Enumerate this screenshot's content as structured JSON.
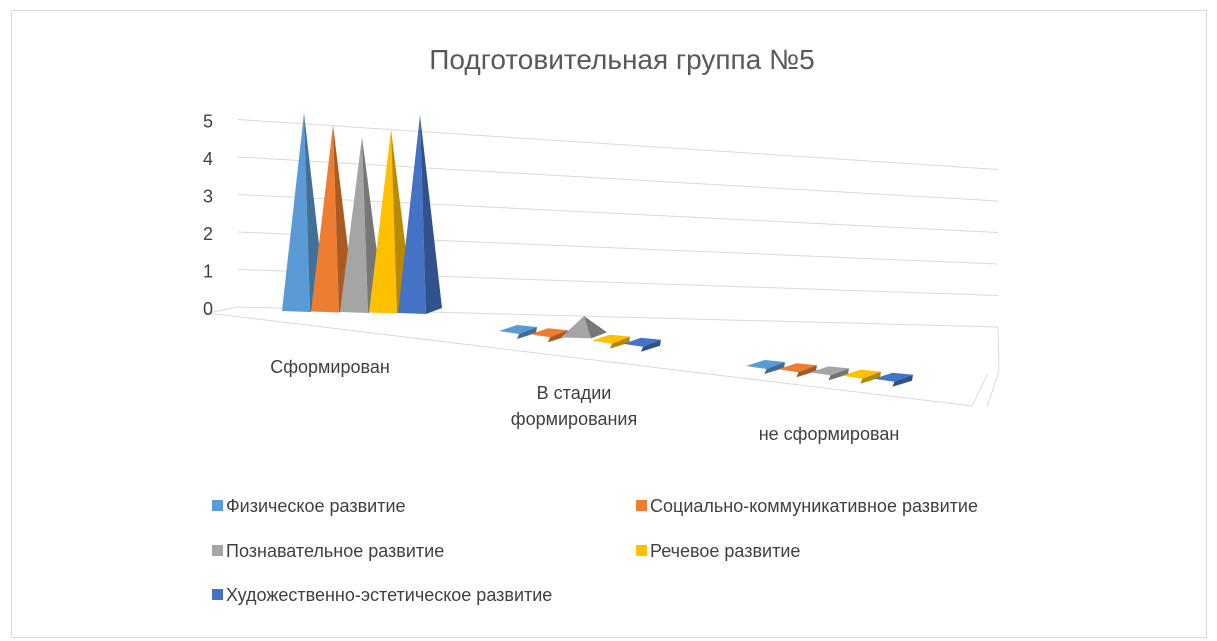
{
  "chart_data": {
    "type": "bar",
    "title": "Подготовительная группа №5",
    "categories": [
      "Сформирован",
      "В стадии формирования",
      "не сформирован"
    ],
    "series": [
      {
        "name": "Физическое развитие",
        "values": [
          5,
          0,
          0
        ],
        "color": "#5B9BD5"
      },
      {
        "name": "Социально-коммуникативное развитие",
        "values": [
          4.7,
          0,
          0
        ],
        "color": "#ED7D31"
      },
      {
        "name": "Познавательное развитие",
        "values": [
          4.4,
          0.4,
          0
        ],
        "color": "#A5A5A5"
      },
      {
        "name": "Речевое развитие",
        "values": [
          4.6,
          0,
          0
        ],
        "color": "#FFC000"
      },
      {
        "name": "Художественно-эстетическое развитие",
        "values": [
          5,
          0,
          0
        ],
        "color": "#4472C4"
      }
    ],
    "yticks": [
      "0",
      "1",
      "2",
      "3",
      "4",
      "5"
    ],
    "ylim": [
      0,
      5
    ],
    "bar_shape": "pyramid",
    "grid": true,
    "legend_position": "bottom"
  }
}
